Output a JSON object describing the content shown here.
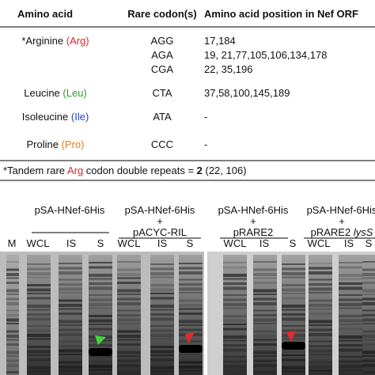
{
  "table": {
    "headers": [
      "Amino acid",
      "Rare codon(s)",
      "Amino acid position in Nef ORF"
    ],
    "rows": [
      {
        "name": "*Arginine",
        "abbr": "(Arg)",
        "color": "#e02424",
        "codons": [
          {
            "codon": "AGG",
            "positions": "17,184"
          },
          {
            "codon": "AGA",
            "positions": "19, 21,77,105,106,134,178"
          },
          {
            "codon": "CGA",
            "positions": "22, 35,196"
          }
        ]
      },
      {
        "name": "Leucine",
        "abbr": "(Leu)",
        "color": "#2e9a2e",
        "codons": [
          {
            "codon": "CTA",
            "positions": "37,58,100,145,189"
          }
        ]
      },
      {
        "name": "Isoleucine",
        "abbr": "(Ile)",
        "color": "#2440c4",
        "codons": [
          {
            "codon": "ATA",
            "positions": "-"
          }
        ]
      },
      {
        "name": "Proline",
        "abbr": "(Pro)",
        "color": "#e27a1e",
        "codons": [
          {
            "codon": "CCC",
            "positions": "-"
          }
        ]
      }
    ],
    "footnote": {
      "pre": "*Tandem rare ",
      "arg": "Arg",
      "mid": " codon double repeats = ",
      "count": "2",
      "post": " (22, 106)"
    }
  },
  "gel": {
    "marker": "M",
    "groups": [
      {
        "lines": [
          "pSA-HNef-6His"
        ]
      },
      {
        "lines": [
          "pSA-HNef-6His",
          "+",
          "pACYC-RIL"
        ]
      },
      {
        "lines": [
          "pSA-HNef-6His",
          "+",
          "pRARE2"
        ]
      },
      {
        "lines": [
          "pSA-HNef-6His",
          "+",
          "pRARE2 "
        ],
        "italic": "lysS"
      }
    ],
    "lanes": [
      "WCL",
      "IS",
      "S"
    ]
  }
}
